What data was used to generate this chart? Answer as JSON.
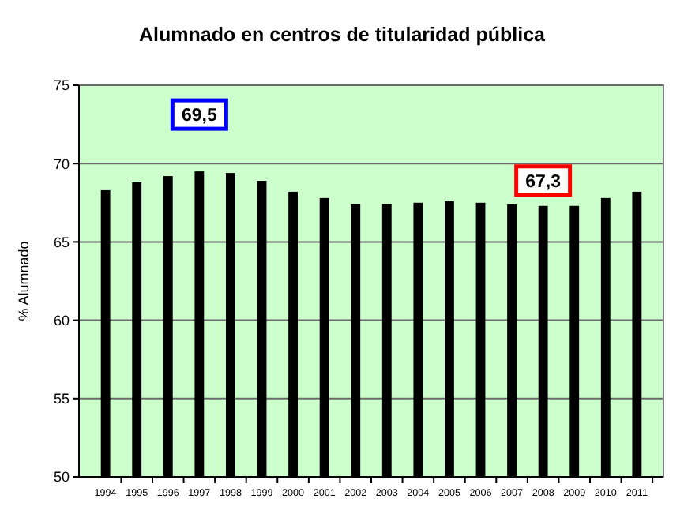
{
  "chart_data": {
    "type": "bar",
    "title": "Alumnado en centros de titularidad pública",
    "ylabel": "% Alumnado",
    "categories": [
      "1994",
      "1995",
      "1996",
      "1997",
      "1998",
      "1999",
      "2000",
      "2001",
      "2002",
      "2003",
      "2004",
      "2005",
      "2006",
      "2007",
      "2008",
      "2009",
      "2010",
      "2011"
    ],
    "values": [
      68.3,
      68.8,
      69.2,
      69.5,
      69.4,
      68.9,
      68.2,
      67.8,
      67.4,
      67.4,
      67.5,
      67.6,
      67.5,
      67.4,
      67.3,
      67.3,
      67.8,
      68.2
    ],
    "color": "#000000",
    "ylim": [
      50,
      75
    ],
    "yticks": [
      50,
      55,
      60,
      65,
      70,
      75
    ],
    "grid": "y",
    "annotations": [
      {
        "text": "69,5",
        "x": "1997",
        "y": 69.5
      },
      {
        "text": "67,3",
        "x": "2008",
        "y": 67.3
      }
    ]
  }
}
